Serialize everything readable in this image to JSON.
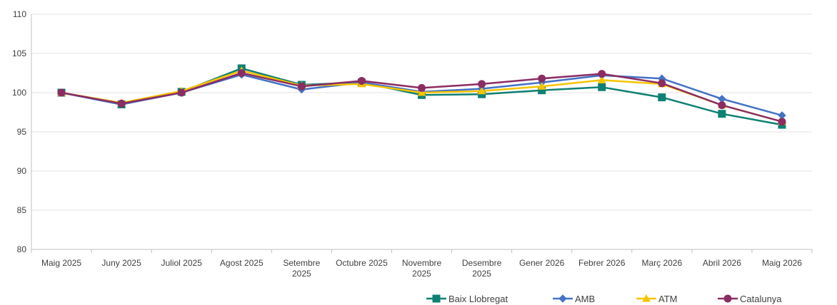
{
  "chart_data": {
    "type": "line",
    "categories": [
      [
        "Maig 2025"
      ],
      [
        "Juny 2025"
      ],
      [
        "Juliol 2025"
      ],
      [
        "Agost 2025"
      ],
      [
        "Setembre",
        "2025"
      ],
      [
        "Octubre 2025"
      ],
      [
        "Novembre",
        "2025"
      ],
      [
        "Desembre",
        "2025"
      ],
      [
        "Gener 2026"
      ],
      [
        "Febrer 2026"
      ],
      [
        "Març 2026"
      ],
      [
        "Abril 2026"
      ],
      [
        "Maig 2026"
      ]
    ],
    "ylim": [
      80,
      110
    ],
    "yticks": [
      80,
      85,
      90,
      95,
      100,
      105,
      110
    ],
    "grid": true,
    "legend_position": "bottom-right",
    "series": [
      {
        "name": "Baix Llobregat",
        "color": "#0f8074",
        "marker": "square",
        "values": [
          100.0,
          98.5,
          100.1,
          103.1,
          101.0,
          101.3,
          99.7,
          99.8,
          100.3,
          100.7,
          99.4,
          97.3,
          95.9
        ]
      },
      {
        "name": "AMB",
        "color": "#4472c4",
        "marker": "diamond",
        "values": [
          100.0,
          98.5,
          100.0,
          102.3,
          100.4,
          101.3,
          100.1,
          100.5,
          101.3,
          102.2,
          101.8,
          99.2,
          97.1
        ]
      },
      {
        "name": "ATM",
        "color": "#f5c400",
        "marker": "triangle",
        "values": [
          100.0,
          98.7,
          100.2,
          102.8,
          100.9,
          101.1,
          100.0,
          100.2,
          100.8,
          101.6,
          101.1,
          98.4,
          96.3
        ]
      },
      {
        "name": "Catalunya",
        "color": "#8b2d63",
        "marker": "circle",
        "values": [
          100.0,
          98.6,
          100.0,
          102.5,
          100.8,
          101.5,
          100.6,
          101.1,
          101.8,
          102.4,
          101.2,
          98.4,
          96.3
        ]
      }
    ]
  }
}
